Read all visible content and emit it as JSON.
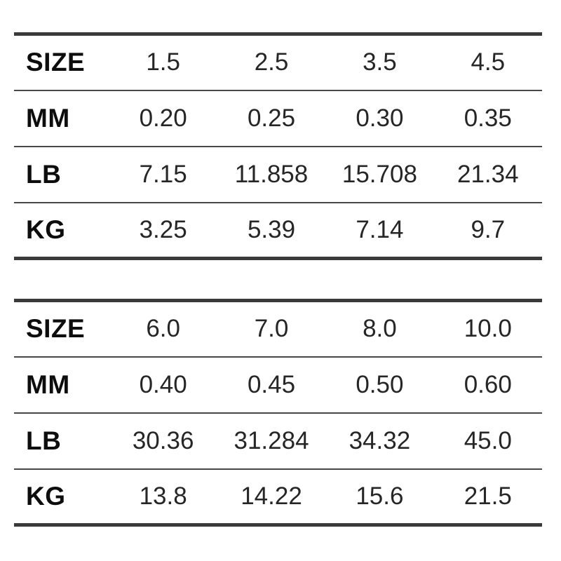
{
  "colors": {
    "background": "#ffffff",
    "thick_border": "#3a3a3a",
    "thin_separator": "#484848",
    "label_text": "#0d0d0d",
    "value_text": "#262626"
  },
  "chart_data": [
    {
      "type": "table",
      "title": "",
      "header_column": [
        "SIZE",
        "MM",
        "LB",
        "KG"
      ],
      "rows": [
        {
          "label": "SIZE",
          "values": [
            "1.5",
            "2.5",
            "3.5",
            "4.5"
          ]
        },
        {
          "label": "MM",
          "values": [
            "0.20",
            "0.25",
            "0.30",
            "0.35"
          ]
        },
        {
          "label": "LB",
          "values": [
            "7.15",
            "11.858",
            "15.708",
            "21.34"
          ]
        },
        {
          "label": "KG",
          "values": [
            "3.25",
            "5.39",
            "7.14",
            "9.7"
          ]
        }
      ]
    },
    {
      "type": "table",
      "title": "",
      "header_column": [
        "SIZE",
        "MM",
        "LB",
        "KG"
      ],
      "rows": [
        {
          "label": "SIZE",
          "values": [
            "6.0",
            "7.0",
            "8.0",
            "10.0"
          ]
        },
        {
          "label": "MM",
          "values": [
            "0.40",
            "0.45",
            "0.50",
            "0.60"
          ]
        },
        {
          "label": "LB",
          "values": [
            "30.36",
            "31.284",
            "34.32",
            "45.0"
          ]
        },
        {
          "label": "KG",
          "values": [
            "13.8",
            "14.22",
            "15.6",
            "21.5"
          ]
        }
      ]
    }
  ]
}
